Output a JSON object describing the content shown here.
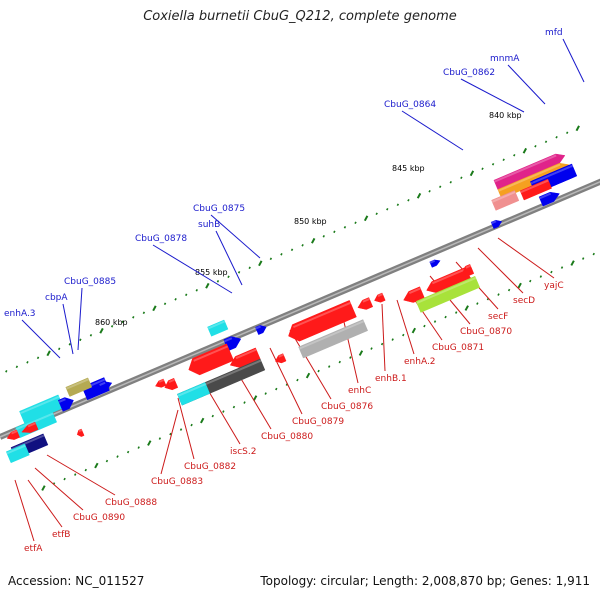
{
  "title": "Coxiella burnetii CbuG_Q212, complete genome",
  "footer": {
    "accession": "Accession: NC_011527",
    "summary": "Topology: circular; Length: 2,008,870 bp; Genes: 1,911"
  },
  "colors": {
    "backbone": "#808080",
    "forward_label": "#1a1acc",
    "reverse_label": "#cc1a1a",
    "tick": "#1a7a1a",
    "red": "#ff1a1a",
    "blue": "#0000ee",
    "cyan": "#20dfe6",
    "olive": "#b5aa52",
    "grey": "#b0b0b0",
    "dark_grey": "#4a4a4a",
    "lime": "#a8e23a",
    "navy": "#101080",
    "salmon": "#f09090",
    "magenta": "#e0238a",
    "orange": "#f5a020"
  },
  "scale_labels": [
    "840 kbp",
    "845 kbp",
    "850 kbp",
    "855 kbp",
    "860 kbp"
  ],
  "forward_labels": [
    "mfd",
    "mnmA",
    "CbuG_0862",
    "CbuG_0864",
    "CbuG_0875",
    "suhB",
    "CbuG_0878",
    "CbuG_0885",
    "cbpA",
    "enhA.3"
  ],
  "reverse_labels": [
    "yajC",
    "secD",
    "secF",
    "CbuG_0870",
    "CbuG_0871",
    "enhA.2",
    "enhB.1",
    "enhC",
    "CbuG_0876",
    "CbuG_0879",
    "CbuG_0880",
    "iscS.2",
    "CbuG_0882",
    "CbuG_0883",
    "CbuG_0888",
    "CbuG_0890",
    "etfB",
    "etfA"
  ]
}
